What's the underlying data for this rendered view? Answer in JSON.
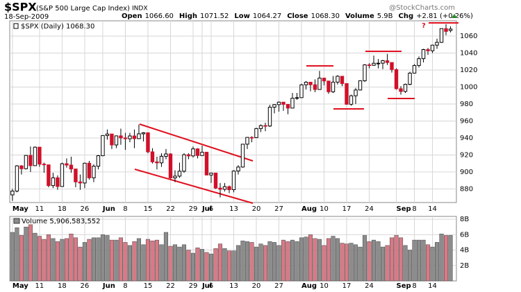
{
  "header": {
    "symbol": "$SPX",
    "name": "(S&P 500 Large Cap Index)",
    "exchange": "INDX",
    "date": "18-Sep-2009",
    "stats": [
      {
        "label": "Open",
        "value": "1066.60"
      },
      {
        "label": "High",
        "value": "1071.52"
      },
      {
        "label": "Low",
        "value": "1064.27"
      },
      {
        "label": "Close",
        "value": "1068.30"
      },
      {
        "label": "Volume",
        "value": "5.9B"
      },
      {
        "label": "Chg",
        "value": "+2.81 (+0.26%)"
      }
    ],
    "watermark": "@StockCharts.com"
  },
  "chart_data": [
    {
      "type": "candlestick",
      "legend": "$SPX (Daily) 1068.30",
      "annotation": "?",
      "up_color": "#ffffff",
      "down_color": "#d0102a",
      "open": [
        873,
        877.5,
        907.2,
        903.8,
        919.5,
        907.4,
        929.2,
        909.2,
        908.4,
        883.9,
        893.1,
        882.9,
        909.7,
        908.1,
        903.5,
        888.3,
        887.0,
        910.3,
        893.1,
        906.8,
        919.1,
        942.9,
        944.7,
        931.8,
        942.5,
        940.1,
        939.1,
        942.4,
        939.2,
        944.9,
        946.2,
        923.7,
        911.9,
        910.7,
        918.4,
        921.2,
        893.0,
        895.1,
        900.9,
        920.3,
        918.9,
        927.2,
        919.3,
        923.3,
        896.4,
        898.7,
        881.0,
        879.6,
        882.7,
        879.1,
        901.1,
        905.8,
        932.7,
        940.7,
        940.4,
        951.1,
        954.6,
        954.1,
        976.3,
        979.3,
        982.2,
        979.6,
        975.2,
        986.8,
        987.5,
        1002.6,
        1005.7,
        1002.7,
        997.1,
        1010.5,
        1007.1,
        994.4,
        1005.8,
        1012.7,
        1004.1,
        979.7,
        989.7,
        996.5,
        1007.4,
        1026.1,
        1025.6,
        1028.0,
        1028.1,
        1031.0,
        1028.9,
        1020.6,
        998.0,
        994.8,
        1003.2,
        1016.4,
        1025.4,
        1033.4,
        1044.1,
        1042.7,
        1049.3,
        1052.6,
        1068.8,
        1066.6
      ],
      "high": [
        880,
        908,
        908,
        920,
        930,
        930,
        929,
        911,
        908,
        899,
        896,
        911,
        916,
        918,
        903,
        897,
        911,
        913,
        909,
        920,
        943,
        950,
        945,
        943,
        951,
        946,
        946,
        950,
        956,
        947,
        946,
        928,
        918,
        922,
        927,
        922,
        902,
        911,
        922,
        922,
        930,
        928,
        931,
        923,
        899,
        899,
        887,
        887,
        884,
        902,
        908,
        933,
        941,
        942,
        952,
        956,
        958,
        979,
        980,
        983,
        982,
        980,
        993,
        993,
        1004,
        1007,
        1006,
        1009,
        1019,
        1011,
        1007,
        1013,
        1014,
        1013,
        1004,
        991,
        999,
        1008,
        1027,
        1028,
        1037,
        1033,
        1032,
        1039,
        1029,
        1022,
        1001,
        1004,
        1018,
        1027,
        1036,
        1045,
        1046,
        1050,
        1057,
        1069,
        1074,
        1071.52
      ],
      "low": [
        866,
        876,
        897,
        903,
        900,
        907,
        906,
        899,
        882,
        881,
        879,
        883,
        905,
        899,
        882,
        879,
        881,
        891,
        888,
        903,
        919,
        938,
        927,
        928,
        932,
        926,
        935,
        928,
        939,
        936,
        922,
        910,
        903,
        906,
        915,
        892,
        888,
        893,
        899,
        915,
        917,
        916,
        919,
        896,
        887,
        880,
        870,
        877,
        875,
        876,
        897,
        905,
        927,
        935,
        940,
        947,
        948,
        953,
        969,
        971,
        972,
        968,
        975,
        985,
        987,
        997,
        995,
        994,
        997,
        1002,
        992,
        993,
        1003,
        1001,
        979,
        978,
        980,
        996,
        1006,
        1022,
        1025,
        1022,
        1021,
        1026,
        1017,
        997,
        991,
        993,
        1002,
        1016,
        1023,
        1029,
        1038,
        1040,
        1045,
        1052,
        1061,
        1064.27
      ],
      "close": [
        877.5,
        907.2,
        903.8,
        919.5,
        907.4,
        929.2,
        909.2,
        908.4,
        883.9,
        893.1,
        882.9,
        909.7,
        908.1,
        903.5,
        888.3,
        887.0,
        910.3,
        893.1,
        906.8,
        919.1,
        942.9,
        944.7,
        931.8,
        942.5,
        940.1,
        939.1,
        942.4,
        939.2,
        944.9,
        946.2,
        923.7,
        911.9,
        910.7,
        918.4,
        921.2,
        893.0,
        895.1,
        900.9,
        920.3,
        918.9,
        927.2,
        919.3,
        923.3,
        896.4,
        898.7,
        881.0,
        879.6,
        882.7,
        879.1,
        901.1,
        905.8,
        932.7,
        940.7,
        940.4,
        951.1,
        954.6,
        954.1,
        976.3,
        979.3,
        982.2,
        979.6,
        975.2,
        986.8,
        987.5,
        1002.6,
        1005.7,
        1002.7,
        997.1,
        1010.5,
        1007.1,
        994.4,
        1005.8,
        1012.7,
        1004.1,
        979.7,
        989.7,
        996.5,
        1007.4,
        1026.1,
        1025.6,
        1028.0,
        1028.1,
        1031.0,
        1028.9,
        1020.6,
        998.0,
        994.8,
        1003.2,
        1016.4,
        1025.4,
        1033.4,
        1044.1,
        1042.7,
        1049.3,
        1052.6,
        1068.8,
        1065.5,
        1068.3
      ],
      "xlim": [
        -0.6,
        98.3
      ],
      "ylim": [
        864,
        1078
      ],
      "yticks": [
        880,
        900,
        920,
        940,
        960,
        980,
        1000,
        1020,
        1040,
        1060
      ],
      "grid": true,
      "xticks": [
        {
          "value": 0,
          "label": "May"
        },
        {
          "value": 6,
          "label": "11"
        },
        {
          "value": 11,
          "label": "18"
        },
        {
          "value": 16,
          "label": "26"
        },
        {
          "value": 20,
          "label": "Jun"
        },
        {
          "value": 25,
          "label": "8"
        },
        {
          "value": 30,
          "label": "15"
        },
        {
          "value": 35,
          "label": "22"
        },
        {
          "value": 40,
          "label": "29"
        },
        {
          "value": 42,
          "label": "Jul"
        },
        {
          "value": 44,
          "label": "6"
        },
        {
          "value": 49,
          "label": "13"
        },
        {
          "value": 54,
          "label": "20"
        },
        {
          "value": 59,
          "label": "27"
        },
        {
          "value": 64,
          "label": "Aug"
        },
        {
          "value": 69,
          "label": "10"
        },
        {
          "value": 74,
          "label": "17"
        },
        {
          "value": 79,
          "label": "24"
        },
        {
          "value": 85,
          "label": "Sep"
        },
        {
          "value": 89,
          "label": "8"
        },
        {
          "value": 93,
          "label": "14"
        }
      ]
    },
    {
      "type": "volume",
      "legend": "Volume 5,906,583,552",
      "up_color": "#8c8c8c",
      "down_color": "#d87a86",
      "values": [
        6.3,
        6.9,
        5.9,
        7.0,
        7.3,
        6.2,
        5.8,
        5.4,
        6.0,
        5.5,
        5.1,
        5.4,
        5.5,
        6.1,
        5.6,
        4.4,
        5.0,
        5.4,
        5.6,
        5.6,
        6.0,
        5.9,
        5.3,
        5.3,
        5.6,
        5.0,
        4.6,
        5.1,
        5.5,
        4.7,
        5.4,
        5.2,
        5.3,
        4.7,
        6.3,
        4.5,
        4.7,
        4.4,
        4.7,
        4.0,
        3.6,
        4.3,
        4.1,
        3.7,
        3.5,
        4.2,
        4.8,
        4.2,
        3.9,
        3.9,
        4.6,
        5.2,
        5.1,
        5.0,
        4.4,
        4.8,
        4.6,
        5.1,
        5.0,
        4.6,
        5.3,
        5.1,
        5.3,
        5.1,
        5.6,
        5.7,
        6.0,
        5.5,
        5.4,
        4.6,
        5.5,
        5.8,
        5.5,
        4.9,
        4.8,
        4.9,
        4.7,
        4.4,
        5.9,
        5.1,
        5.3,
        5.1,
        4.4,
        4.6,
        5.6,
        5.9,
        5.6,
        4.6,
        4.0,
        5.3,
        5.3,
        5.3,
        4.7,
        4.4,
        5.0,
        6.1,
        5.9,
        5.906583552
      ],
      "ylim": [
        0,
        8.37
      ],
      "yticks": [
        {
          "value": 2,
          "label": "2B"
        },
        {
          "value": 4,
          "label": "4B"
        },
        {
          "value": 6,
          "label": "6B"
        },
        {
          "value": 8,
          "label": "8B"
        }
      ],
      "grid": true
    }
  ]
}
